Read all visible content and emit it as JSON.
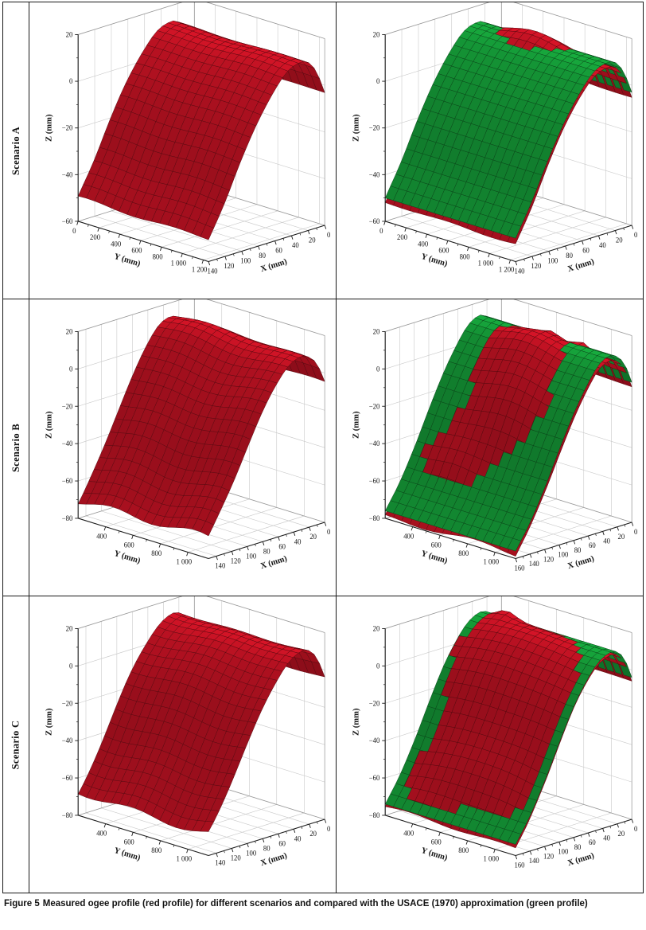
{
  "figure": {
    "caption_label": "Figure 5",
    "caption_text": "Measured ogee profile (red profile) for different scenarios and compared with the USACE (1970) approximation (green profile)"
  },
  "rows": [
    {
      "label": "Scenario A"
    },
    {
      "label": "Scenario B"
    },
    {
      "label": "Scenario C"
    }
  ],
  "style": {
    "grid_color": "#c9c9c9",
    "wall_edge_color": "#9b9b9b",
    "axis_color": "#1c1c1c",
    "measured_color": "#ce1426",
    "approximation_color": "#17a53c"
  },
  "chart_data": [
    {
      "scenario": "Scenario A",
      "panel": "measured",
      "type": "surface",
      "surfaces": [
        {
          "name": "Measured ogee profile",
          "color": "#ce1426"
        }
      ],
      "xlabel": "X (mm)",
      "ylabel": "Y (mm)",
      "zlabel": "Z (mm)",
      "xlim": [
        0,
        140
      ],
      "ylim": [
        0,
        1250
      ],
      "zlim": [
        -60,
        20
      ],
      "xticks": {
        "vals": [
          0,
          20,
          40,
          60,
          80,
          100,
          120,
          140
        ],
        "labels": [
          "0",
          "20",
          "40",
          "60",
          "80",
          "100",
          "120",
          "140"
        ]
      },
      "yticks": {
        "vals": [
          0,
          200,
          400,
          600,
          800,
          1000,
          1200
        ],
        "labels": [
          "0",
          "200",
          "400",
          "600",
          "800",
          "1 000",
          "1 200"
        ]
      },
      "zticks": {
        "vals": [
          20,
          0,
          -20,
          -40,
          -60
        ],
        "labels": [
          "20",
          "0",
          "−20",
          "−40",
          "−60"
        ]
      },
      "profile_x": [
        0,
        10,
        20,
        30,
        45,
        60,
        80,
        100,
        120,
        140
      ],
      "profile_z": [
        -3,
        7,
        12,
        13,
        11,
        5,
        -6,
        -20,
        -36,
        -50
      ],
      "ripple": 1.3
    },
    {
      "scenario": "Scenario A",
      "panel": "comparison",
      "type": "surface",
      "surfaces": [
        {
          "name": "Measured ogee profile",
          "color": "#ce1426"
        },
        {
          "name": "USACE (1970) approximation",
          "color": "#17a53c"
        }
      ],
      "xlabel": "X (mm)",
      "ylabel": "Y (mm)",
      "zlabel": "Z (mm)",
      "xlim": [
        0,
        140
      ],
      "ylim": [
        0,
        1250
      ],
      "zlim": [
        -60,
        20
      ],
      "xticks": {
        "vals": [
          0,
          20,
          40,
          60,
          80,
          100,
          120,
          140
        ],
        "labels": [
          "0",
          "20",
          "40",
          "60",
          "80",
          "100",
          "120",
          "140"
        ]
      },
      "yticks": {
        "vals": [
          0,
          200,
          400,
          600,
          800,
          1000,
          1200
        ],
        "labels": [
          "0",
          "200",
          "400",
          "600",
          "800",
          "1 000",
          "1 200"
        ]
      },
      "zticks": {
        "vals": [
          20,
          0,
          -20,
          -40,
          -60
        ],
        "labels": [
          "20",
          "0",
          "−20",
          "−40",
          "−60"
        ]
      },
      "profile_x": [
        0,
        10,
        20,
        30,
        45,
        60,
        80,
        100,
        120,
        140
      ],
      "profile_z": [
        -3,
        7,
        12,
        13,
        11,
        5,
        -6,
        -20,
        -36,
        -50
      ],
      "ripple": 0.8,
      "red_offset": -2.2,
      "patches": [
        {
          "ca": 0.42,
          "cb": 0.18,
          "ra": 0.3,
          "rb": 0.13,
          "h": 5.2
        }
      ]
    },
    {
      "scenario": "Scenario B",
      "panel": "measured",
      "type": "surface",
      "surfaces": [
        {
          "name": "Measured ogee profile",
          "color": "#ce1426"
        }
      ],
      "xlabel": "X (mm)",
      "ylabel": "Y (mm)",
      "zlabel": "Z (mm)",
      "xlim": [
        0,
        150
      ],
      "ylim": [
        200,
        1150
      ],
      "zlim": [
        -80,
        20
      ],
      "xticks": {
        "vals": [
          0,
          20,
          40,
          60,
          80,
          100,
          120,
          140
        ],
        "labels": [
          "0",
          "20",
          "40",
          "60",
          "80",
          "100",
          "120",
          "140"
        ]
      },
      "yticks": {
        "vals": [
          400,
          600,
          800,
          1000
        ],
        "labels": [
          "400",
          "600",
          "800",
          "1 000"
        ]
      },
      "zticks": {
        "vals": [
          20,
          0,
          -20,
          -40,
          -60,
          -80
        ],
        "labels": [
          "20",
          "0",
          "−20",
          "−40",
          "−60",
          "−80"
        ]
      },
      "profile_x": [
        0,
        10,
        20,
        30,
        45,
        60,
        80,
        100,
        120,
        140,
        150
      ],
      "profile_z": [
        -5,
        6,
        11,
        13,
        10,
        2,
        -12,
        -29,
        -47,
        -63,
        -70
      ],
      "ripple": 4.5
    },
    {
      "scenario": "Scenario B",
      "panel": "comparison",
      "type": "surface",
      "surfaces": [
        {
          "name": "Measured ogee profile",
          "color": "#ce1426"
        },
        {
          "name": "USACE (1970) approximation",
          "color": "#17a53c"
        }
      ],
      "xlabel": "X (mm)",
      "ylabel": "Y (mm)",
      "zlabel": "Z (mm)",
      "xlim": [
        0,
        160
      ],
      "ylim": [
        200,
        1150
      ],
      "zlim": [
        -80,
        20
      ],
      "xticks": {
        "vals": [
          0,
          20,
          40,
          60,
          80,
          100,
          120,
          140,
          160
        ],
        "labels": [
          "0",
          "20",
          "40",
          "60",
          "80",
          "100",
          "120",
          "140",
          "160"
        ]
      },
      "yticks": {
        "vals": [
          400,
          600,
          800,
          1000
        ],
        "labels": [
          "400",
          "600",
          "800",
          "1 000"
        ]
      },
      "zticks": {
        "vals": [
          20,
          0,
          -20,
          -40,
          -60,
          -80
        ],
        "labels": [
          "20",
          "0",
          "−20",
          "−40",
          "−60",
          "−80"
        ]
      },
      "profile_x": [
        0,
        10,
        20,
        30,
        45,
        60,
        80,
        100,
        120,
        140,
        160
      ],
      "profile_z": [
        -5,
        6,
        11,
        13,
        10,
        2,
        -12,
        -29,
        -47,
        -63,
        -76
      ],
      "ripple": 2.0,
      "red_offset": -2.2,
      "patches": [
        {
          "ca": 0.5,
          "cb": 0.1,
          "ra": 0.09,
          "rb": 0.07,
          "h": 4.2
        },
        {
          "ca": 0.42,
          "cb": 0.3,
          "ra": 0.24,
          "rb": 0.16,
          "h": 5.6
        },
        {
          "ca": 0.52,
          "cb": 0.55,
          "ra": 0.28,
          "rb": 0.18,
          "h": 5.2
        },
        {
          "ca": 0.32,
          "cb": 0.78,
          "ra": 0.2,
          "rb": 0.12,
          "h": 4.6
        },
        {
          "ca": 0.74,
          "cb": 0.12,
          "ra": 0.07,
          "rb": 0.06,
          "h": 3.8
        }
      ]
    },
    {
      "scenario": "Scenario C",
      "panel": "measured",
      "type": "surface",
      "surfaces": [
        {
          "name": "Measured ogee profile",
          "color": "#ce1426"
        }
      ],
      "xlabel": "X (mm)",
      "ylabel": "Y (mm)",
      "zlabel": "Z (mm)",
      "xlim": [
        0,
        150
      ],
      "ylim": [
        200,
        1150
      ],
      "zlim": [
        -80,
        20
      ],
      "xticks": {
        "vals": [
          0,
          20,
          40,
          60,
          80,
          100,
          120,
          140
        ],
        "labels": [
          "0",
          "20",
          "40",
          "60",
          "80",
          "100",
          "120",
          "140"
        ]
      },
      "yticks": {
        "vals": [
          400,
          600,
          800,
          1000
        ],
        "labels": [
          "400",
          "600",
          "800",
          "1 000"
        ]
      },
      "zticks": {
        "vals": [
          20,
          0,
          -20,
          -40,
          -60,
          -80
        ],
        "labels": [
          "20",
          "0",
          "−20",
          "−40",
          "−60",
          "−80"
        ]
      },
      "profile_x": [
        0,
        10,
        20,
        30,
        45,
        60,
        80,
        100,
        120,
        140,
        150
      ],
      "profile_z": [
        -4,
        7,
        12,
        13,
        10,
        3,
        -10,
        -27,
        -45,
        -61,
        -68
      ],
      "ripple": 3.2
    },
    {
      "scenario": "Scenario C",
      "panel": "comparison",
      "type": "surface",
      "surfaces": [
        {
          "name": "Measured ogee profile",
          "color": "#ce1426"
        },
        {
          "name": "USACE (1970) approximation",
          "color": "#17a53c"
        }
      ],
      "xlabel": "X (mm)",
      "ylabel": "Y (mm)",
      "zlabel": "Z (mm)",
      "xlim": [
        0,
        160
      ],
      "ylim": [
        200,
        1150
      ],
      "zlim": [
        -80,
        20
      ],
      "xticks": {
        "vals": [
          0,
          20,
          40,
          60,
          80,
          100,
          120,
          140,
          160
        ],
        "labels": [
          "0",
          "20",
          "40",
          "60",
          "80",
          "100",
          "120",
          "140",
          "160"
        ]
      },
      "yticks": {
        "vals": [
          400,
          600,
          800,
          1000
        ],
        "labels": [
          "400",
          "600",
          "800",
          "1 000"
        ]
      },
      "zticks": {
        "vals": [
          20,
          0,
          -20,
          -40,
          -60,
          -80
        ],
        "labels": [
          "20",
          "0",
          "−20",
          "−40",
          "−60",
          "−80"
        ]
      },
      "profile_x": [
        0,
        10,
        20,
        30,
        45,
        60,
        80,
        100,
        120,
        140,
        160
      ],
      "profile_z": [
        -4,
        7,
        12,
        13,
        10,
        3,
        -10,
        -27,
        -45,
        -61,
        -74
      ],
      "ripple": 1.5,
      "red_offset": -2.2,
      "patches": [
        {
          "ca": 0.45,
          "cb": 0.42,
          "ra": 0.42,
          "rb": 0.3,
          "h": 6.0
        },
        {
          "ca": 0.16,
          "cb": 0.12,
          "ra": 0.1,
          "rb": 0.08,
          "h": 4.4
        },
        {
          "ca": 0.55,
          "cb": 0.82,
          "ra": 0.4,
          "rb": 0.14,
          "h": 4.8
        }
      ]
    }
  ]
}
